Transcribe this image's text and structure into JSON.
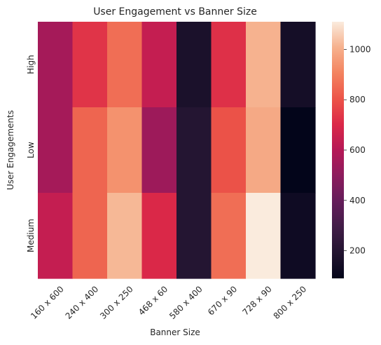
{
  "chart_data": {
    "type": "heatmap",
    "title": "User Engagement vs Banner Size",
    "xlabel": "Banner Size",
    "ylabel": "User Engagements",
    "x_categories": [
      "160 x 600",
      "240 x 400",
      "300 x 250",
      "468 x 60",
      "580 x 400",
      "670 x 90",
      "728 x 90",
      "800 x 250"
    ],
    "y_categories": [
      "High",
      "Low",
      "Medium"
    ],
    "values": [
      [
        560,
        730,
        860,
        640,
        170,
        720,
        1010,
        150
      ],
      [
        560,
        840,
        940,
        540,
        200,
        800,
        990,
        90
      ],
      [
        640,
        840,
        1020,
        700,
        200,
        860,
        1110,
        130
      ]
    ],
    "colorbar": {
      "range": [
        90,
        1110
      ],
      "ticks": [
        200,
        400,
        600,
        800,
        1000
      ],
      "colormap": "rocket"
    }
  }
}
